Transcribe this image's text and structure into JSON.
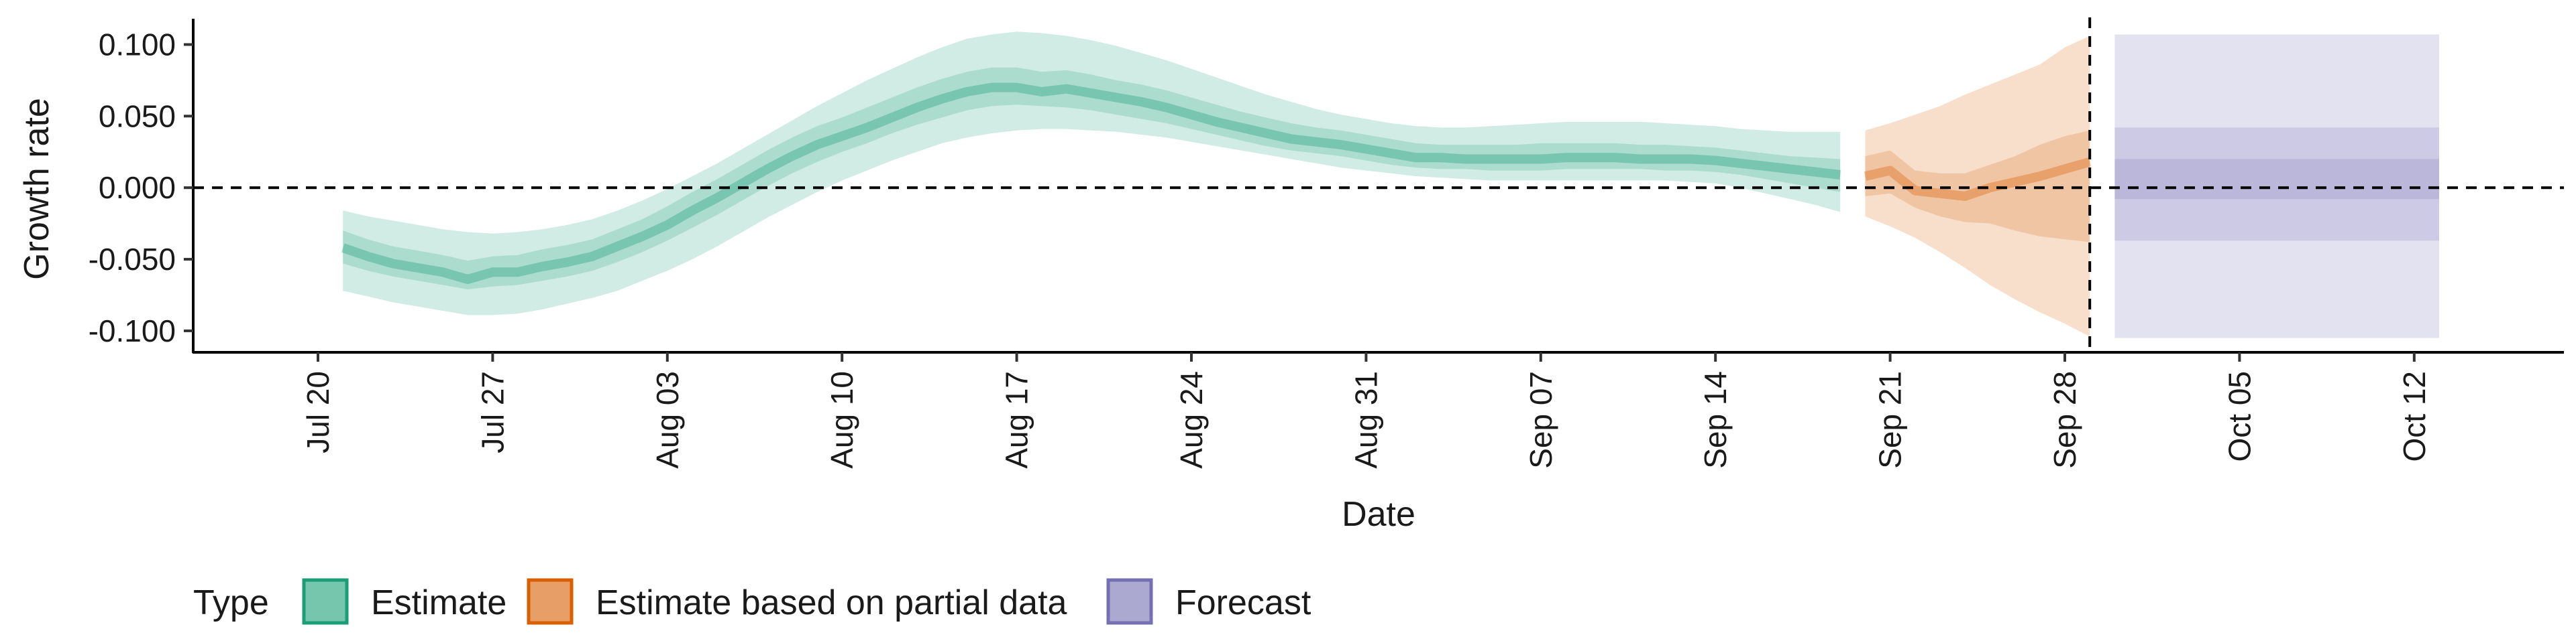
{
  "chart_data": {
    "type": "area",
    "xlabel": "Date",
    "ylabel": "Growth rate",
    "ylim": [
      -0.115,
      0.118
    ],
    "y_ticks": [
      -0.1,
      -0.05,
      0.0,
      0.05,
      0.1
    ],
    "y_tick_labels": [
      "-0.100",
      "-0.050",
      "0.000",
      "0.050",
      "0.100"
    ],
    "x_range": [
      "2020-07-15",
      "2020-10-18"
    ],
    "x_ticks": [
      "2020-07-20",
      "2020-07-27",
      "2020-08-03",
      "2020-08-10",
      "2020-08-17",
      "2020-08-24",
      "2020-08-31",
      "2020-09-07",
      "2020-09-14",
      "2020-09-21",
      "2020-09-28",
      "2020-10-05",
      "2020-10-12"
    ],
    "x_tick_labels": [
      "Jul 20",
      "Jul 27",
      "Aug 03",
      "Aug 10",
      "Aug 17",
      "Aug 24",
      "Aug 31",
      "Sep 07",
      "Sep 14",
      "Sep 21",
      "Sep 28",
      "Oct 05",
      "Oct 12"
    ],
    "reference_lines": {
      "horizontal_y": 0,
      "vertical_x": "2020-09-29"
    },
    "legend": {
      "title": "Type",
      "position": "bottom",
      "items": [
        {
          "label": "Estimate",
          "color": "#1b9e77"
        },
        {
          "label": "Estimate based on partial data",
          "color": "#d95f02"
        },
        {
          "label": "Forecast",
          "color": "#7570b3"
        }
      ]
    },
    "series": [
      {
        "name": "Estimate",
        "color": "#1b9e77",
        "x": [
          "2020-07-21",
          "2020-07-22",
          "2020-07-23",
          "2020-07-24",
          "2020-07-25",
          "2020-07-26",
          "2020-07-27",
          "2020-07-28",
          "2020-07-29",
          "2020-07-30",
          "2020-07-31",
          "2020-08-01",
          "2020-08-02",
          "2020-08-03",
          "2020-08-04",
          "2020-08-05",
          "2020-08-06",
          "2020-08-07",
          "2020-08-08",
          "2020-08-09",
          "2020-08-10",
          "2020-08-11",
          "2020-08-12",
          "2020-08-13",
          "2020-08-14",
          "2020-08-15",
          "2020-08-16",
          "2020-08-17",
          "2020-08-18",
          "2020-08-19",
          "2020-08-20",
          "2020-08-21",
          "2020-08-22",
          "2020-08-23",
          "2020-08-24",
          "2020-08-25",
          "2020-08-26",
          "2020-08-27",
          "2020-08-28",
          "2020-08-29",
          "2020-08-30",
          "2020-08-31",
          "2020-09-01",
          "2020-09-02",
          "2020-09-03",
          "2020-09-04",
          "2020-09-05",
          "2020-09-06",
          "2020-09-07",
          "2020-09-08",
          "2020-09-09",
          "2020-09-10",
          "2020-09-11",
          "2020-09-12",
          "2020-09-13",
          "2020-09-14",
          "2020-09-15",
          "2020-09-16",
          "2020-09-17",
          "2020-09-18",
          "2020-09-19"
        ],
        "median": [
          -0.042,
          -0.048,
          -0.053,
          -0.056,
          -0.059,
          -0.064,
          -0.059,
          -0.059,
          -0.055,
          -0.052,
          -0.048,
          -0.041,
          -0.034,
          -0.026,
          -0.016,
          -0.007,
          0.003,
          0.013,
          0.022,
          0.03,
          0.036,
          0.042,
          0.049,
          0.056,
          0.062,
          0.067,
          0.07,
          0.07,
          0.067,
          0.069,
          0.066,
          0.063,
          0.06,
          0.056,
          0.051,
          0.046,
          0.042,
          0.038,
          0.034,
          0.032,
          0.03,
          0.027,
          0.024,
          0.021,
          0.021,
          0.02,
          0.02,
          0.02,
          0.02,
          0.021,
          0.021,
          0.021,
          0.02,
          0.02,
          0.02,
          0.019,
          0.017,
          0.015,
          0.013,
          0.011,
          0.009
        ],
        "lower90": [
          -0.072,
          -0.076,
          -0.08,
          -0.083,
          -0.086,
          -0.089,
          -0.089,
          -0.088,
          -0.085,
          -0.081,
          -0.077,
          -0.072,
          -0.065,
          -0.058,
          -0.05,
          -0.041,
          -0.031,
          -0.021,
          -0.012,
          -0.003,
          0.005,
          0.012,
          0.019,
          0.025,
          0.031,
          0.035,
          0.038,
          0.04,
          0.041,
          0.041,
          0.04,
          0.039,
          0.037,
          0.035,
          0.032,
          0.029,
          0.026,
          0.023,
          0.02,
          0.017,
          0.014,
          0.012,
          0.01,
          0.008,
          0.007,
          0.006,
          0.005,
          0.005,
          0.005,
          0.005,
          0.005,
          0.005,
          0.005,
          0.005,
          0.004,
          0.003,
          0.0,
          -0.004,
          -0.008,
          -0.012,
          -0.017
        ],
        "upper90": [
          -0.016,
          -0.02,
          -0.023,
          -0.026,
          -0.029,
          -0.031,
          -0.032,
          -0.031,
          -0.029,
          -0.026,
          -0.022,
          -0.016,
          -0.009,
          -0.001,
          0.008,
          0.017,
          0.027,
          0.037,
          0.047,
          0.057,
          0.066,
          0.075,
          0.083,
          0.091,
          0.098,
          0.104,
          0.107,
          0.109,
          0.108,
          0.106,
          0.103,
          0.099,
          0.094,
          0.089,
          0.083,
          0.077,
          0.071,
          0.065,
          0.06,
          0.055,
          0.051,
          0.048,
          0.045,
          0.043,
          0.042,
          0.042,
          0.043,
          0.044,
          0.045,
          0.046,
          0.046,
          0.046,
          0.046,
          0.045,
          0.044,
          0.043,
          0.041,
          0.04,
          0.039,
          0.039,
          0.039
        ],
        "lower50": [
          -0.053,
          -0.058,
          -0.062,
          -0.065,
          -0.068,
          -0.071,
          -0.069,
          -0.068,
          -0.065,
          -0.062,
          -0.058,
          -0.052,
          -0.045,
          -0.037,
          -0.028,
          -0.019,
          -0.009,
          0.001,
          0.01,
          0.018,
          0.025,
          0.031,
          0.038,
          0.044,
          0.049,
          0.054,
          0.057,
          0.058,
          0.057,
          0.056,
          0.054,
          0.051,
          0.048,
          0.045,
          0.041,
          0.037,
          0.033,
          0.029,
          0.026,
          0.024,
          0.022,
          0.019,
          0.016,
          0.014,
          0.013,
          0.013,
          0.012,
          0.012,
          0.012,
          0.013,
          0.013,
          0.013,
          0.013,
          0.012,
          0.012,
          0.011,
          0.009,
          0.006,
          0.003,
          0.0,
          -0.003
        ],
        "upper50": [
          -0.03,
          -0.036,
          -0.041,
          -0.044,
          -0.047,
          -0.051,
          -0.048,
          -0.047,
          -0.043,
          -0.04,
          -0.036,
          -0.029,
          -0.022,
          -0.013,
          -0.003,
          0.006,
          0.016,
          0.026,
          0.035,
          0.043,
          0.049,
          0.056,
          0.063,
          0.07,
          0.076,
          0.081,
          0.084,
          0.084,
          0.081,
          0.082,
          0.079,
          0.075,
          0.072,
          0.068,
          0.063,
          0.058,
          0.053,
          0.049,
          0.045,
          0.042,
          0.04,
          0.037,
          0.034,
          0.031,
          0.03,
          0.03,
          0.03,
          0.03,
          0.031,
          0.031,
          0.031,
          0.031,
          0.03,
          0.03,
          0.029,
          0.028,
          0.026,
          0.024,
          0.022,
          0.021,
          0.02
        ]
      },
      {
        "name": "Estimate based on partial data",
        "color": "#d95f02",
        "x": [
          "2020-09-20",
          "2020-09-21",
          "2020-09-22",
          "2020-09-23",
          "2020-09-24",
          "2020-09-25",
          "2020-09-26",
          "2020-09-27",
          "2020-09-28",
          "2020-09-29"
        ],
        "median": [
          0.008,
          0.012,
          -0.002,
          -0.004,
          -0.006,
          0.0,
          0.004,
          0.008,
          0.013,
          0.018
        ],
        "lower90": [
          -0.02,
          -0.027,
          -0.035,
          -0.045,
          -0.056,
          -0.068,
          -0.078,
          -0.087,
          -0.095,
          -0.104
        ],
        "upper90": [
          0.04,
          0.045,
          0.051,
          0.057,
          0.065,
          0.072,
          0.079,
          0.086,
          0.098,
          0.106
        ],
        "lower50": [
          -0.006,
          -0.004,
          -0.014,
          -0.02,
          -0.024,
          -0.025,
          -0.03,
          -0.034,
          -0.036,
          -0.038
        ],
        "upper50": [
          0.022,
          0.026,
          0.012,
          0.01,
          0.01,
          0.016,
          0.022,
          0.03,
          0.036,
          0.04
        ]
      },
      {
        "name": "Forecast",
        "color": "#7570b3",
        "x": [
          "2020-09-30",
          "2020-10-13"
        ],
        "median": [
          0.006,
          0.006
        ],
        "lower90": [
          -0.105,
          -0.105
        ],
        "upper90": [
          0.107,
          0.107
        ],
        "lower50": [
          -0.037,
          -0.037
        ],
        "upper50": [
          0.042,
          0.042
        ],
        "lower20": [
          -0.008,
          -0.008
        ],
        "upper20": [
          0.02,
          0.02
        ]
      }
    ]
  }
}
